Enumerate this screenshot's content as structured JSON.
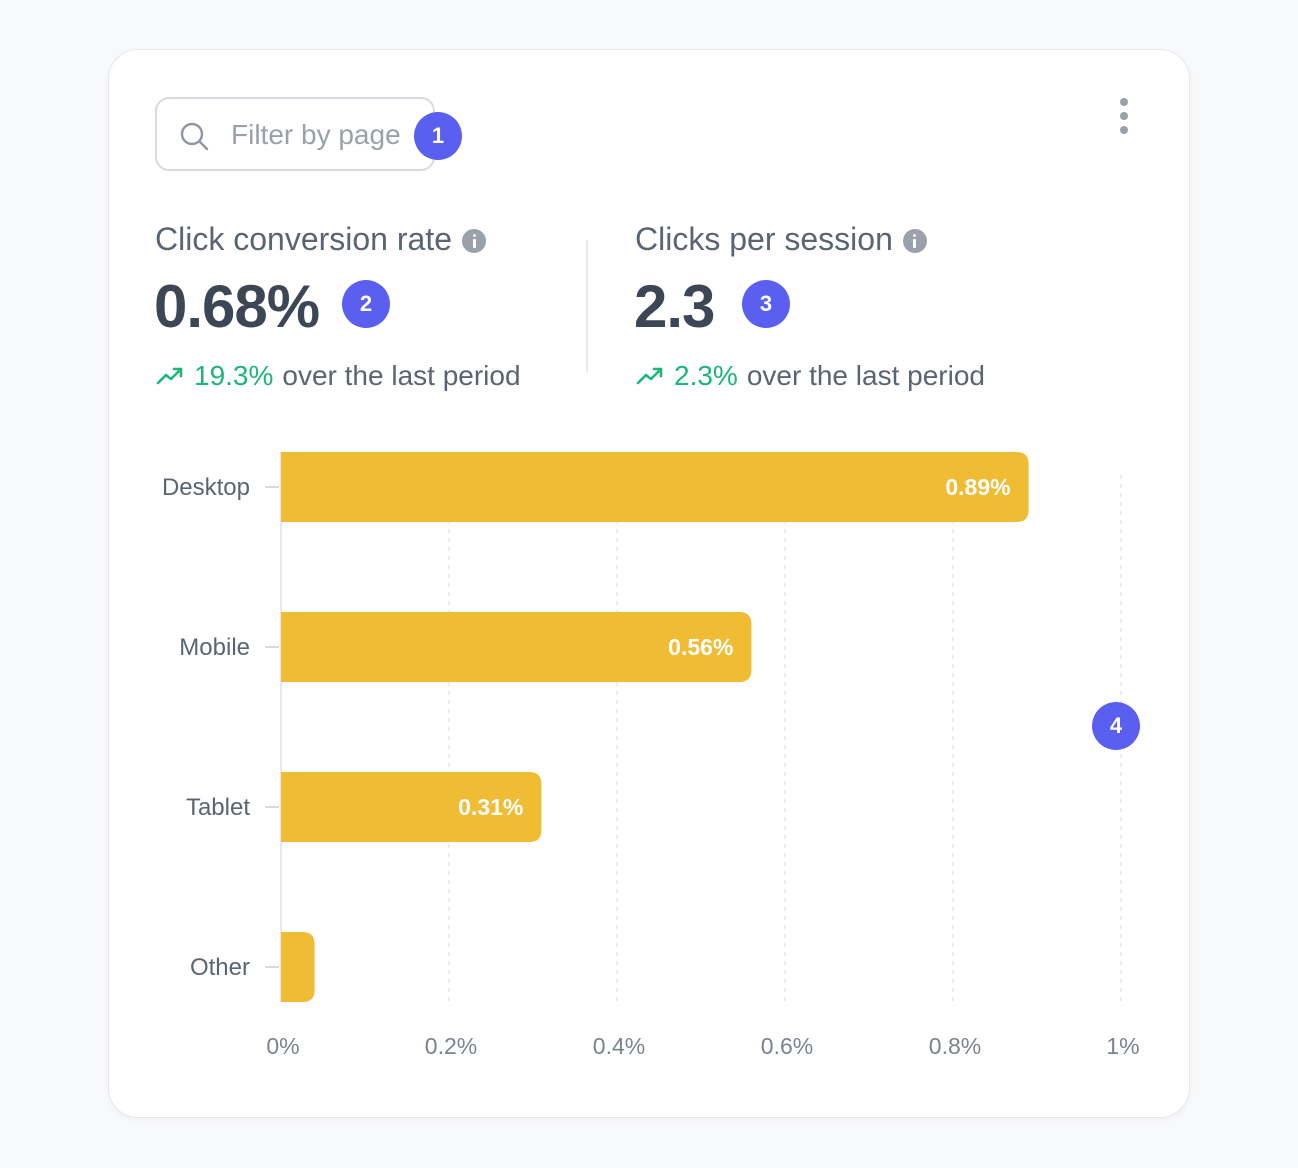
{
  "search": {
    "placeholder": "Filter by page",
    "icon": "search-icon"
  },
  "badges": [
    "1",
    "2",
    "3",
    "4"
  ],
  "menu": {
    "icon": "kebab-menu-icon"
  },
  "metrics": [
    {
      "label": "Click conversion rate",
      "value": "0.68%",
      "trend_pct": "19.3%",
      "trend_text": "over the last period"
    },
    {
      "label": "Clicks per session",
      "value": "2.3",
      "trend_pct": "2.3%",
      "trend_text": "over the last period"
    }
  ],
  "colors": {
    "bar": "#f0bc34",
    "badge": "#5b5ff0",
    "trend_up": "#1fb57a"
  },
  "chart_data": {
    "type": "bar",
    "orientation": "horizontal",
    "categories": [
      "Desktop",
      "Mobile",
      "Tablet",
      "Other"
    ],
    "values": [
      0.89,
      0.56,
      0.31,
      0.04
    ],
    "value_labels": [
      "0.89%",
      "0.56%",
      "0.31%",
      ""
    ],
    "xlim": [
      0,
      1
    ],
    "x_ticks": [
      0,
      0.2,
      0.4,
      0.6,
      0.8,
      1
    ],
    "x_tick_labels": [
      "0%",
      "0.2%",
      "0.4%",
      "0.6%",
      "0.8%",
      "1%"
    ],
    "grid": "vertical-dashed",
    "title": "",
    "xlabel": "",
    "ylabel": ""
  }
}
